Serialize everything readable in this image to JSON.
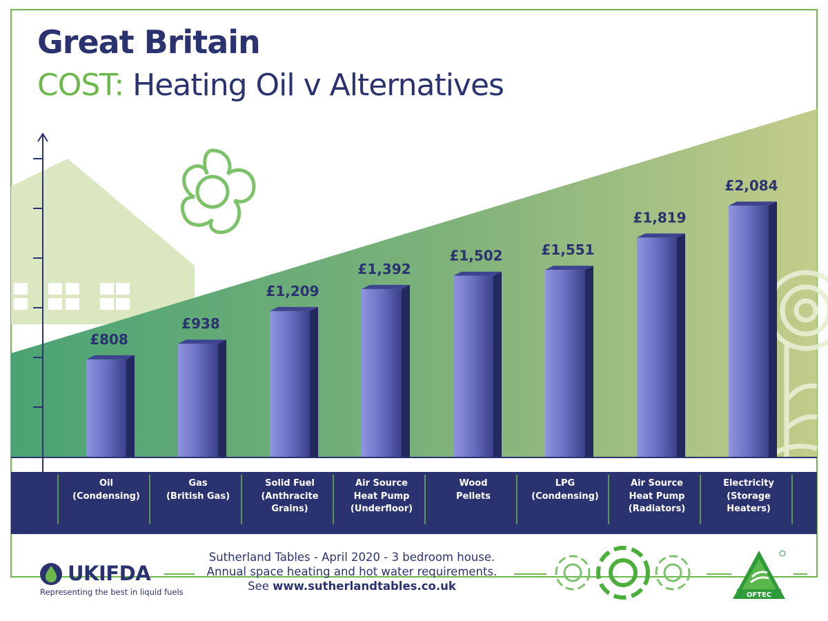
{
  "header": {
    "title": "Great Britain",
    "subtitle_accent": "COST:",
    "subtitle_rest": " Heating Oil v Alternatives"
  },
  "chart_data": {
    "type": "bar",
    "categories": [
      "Oil\n(Condensing)",
      "Gas\n(British Gas)",
      "Solid Fuel\n(Anthracite\nGrains)",
      "Air Source\nHeat Pump\n(Underfloor)",
      "Wood\nPellets",
      "LPG\n(Condensing)",
      "Air Source\nHeat Pump\n(Radiators)",
      "Electricity\n(Storage\nHeaters)"
    ],
    "values": [
      808,
      938,
      1209,
      1392,
      1502,
      1551,
      1819,
      2084
    ],
    "value_labels": [
      "£808",
      "£938",
      "£1,209",
      "£1,392",
      "£1,502",
      "£1,551",
      "£1,819",
      "£2,084"
    ],
    "title": "Great Britain",
    "xlabel": "",
    "ylabel": "",
    "ylim": [
      0,
      2600
    ],
    "grid": false,
    "legend": "none"
  },
  "footer": {
    "note_line1": "Sutherland Tables - April 2020 - 3 bedroom house.",
    "note_line2": "Annual space heating and hot water requirements.",
    "note_line3_prefix": "See ",
    "note_line3_url": "www.sutherlandtables.co.uk"
  },
  "logos": {
    "ukifda_name": "UKIFDA",
    "ukifda_tagline": "Representing the best in liquid fuels",
    "oftec_name": "OFTEC"
  },
  "colors": {
    "navy": "#2b3270",
    "green_accent": "#6cb84a",
    "bar_light": "#8c92dc",
    "bar_dark": "#2e3374",
    "band_green": "#55a878",
    "band_olive": "#c3cc8a"
  },
  "icons": [
    "flower-outline-icon",
    "house-silhouette-icon",
    "swirl-tree-icon",
    "ukifda-drop-icon",
    "oftec-shield-icon"
  ]
}
